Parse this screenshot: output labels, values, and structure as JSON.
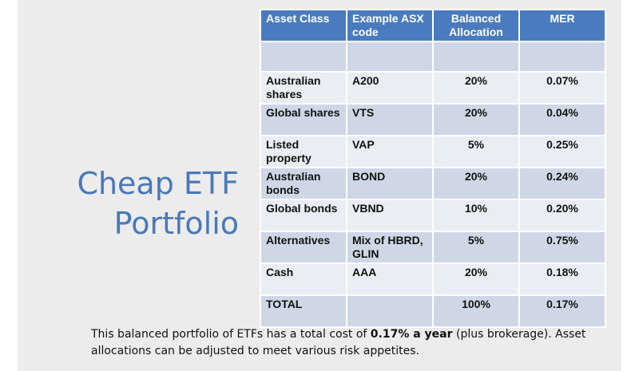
{
  "title": {
    "line1": "Cheap ETF",
    "line2": "Portfolio"
  },
  "table": {
    "headers": [
      "Asset Class",
      "Example ASX code",
      "Balanced Allocation",
      "MER"
    ],
    "rows": [
      {
        "asset": "Australian shares",
        "code": "A200",
        "allocation": "20%",
        "mer": "0.07%"
      },
      {
        "asset": "Global shares",
        "code": "VTS",
        "allocation": "20%",
        "mer": "0.04%"
      },
      {
        "asset": "Listed property",
        "code": "VAP",
        "allocation": "5%",
        "mer": "0.25%"
      },
      {
        "asset": "Australian bonds",
        "code": "BOND",
        "allocation": "20%",
        "mer": "0.24%"
      },
      {
        "asset": "Global bonds",
        "code": "VBND",
        "allocation": "10%",
        "mer": "0.20%"
      },
      {
        "asset": "Alternatives",
        "code": "Mix of HBRD, GLIN",
        "allocation": "5%",
        "mer": "0.75%"
      },
      {
        "asset": "Cash",
        "code": "AAA",
        "allocation": "20%",
        "mer": "0.18%"
      }
    ],
    "total": {
      "asset": "TOTAL",
      "code": "",
      "allocation": "100%",
      "mer": "0.17%"
    }
  },
  "caption": {
    "before": "This balanced portfolio of ETFs has a total cost of ",
    "bold": "0.17% a year",
    "after": " (plus brokerage). Asset allocations can be adjusted to meet various risk appetites."
  },
  "colors": {
    "title": "#4a78b8",
    "header_bg": "#4a7bbf",
    "row_dark": "#cfd7e6",
    "row_light": "#e9edf4",
    "slide_bg": "#ececec"
  }
}
